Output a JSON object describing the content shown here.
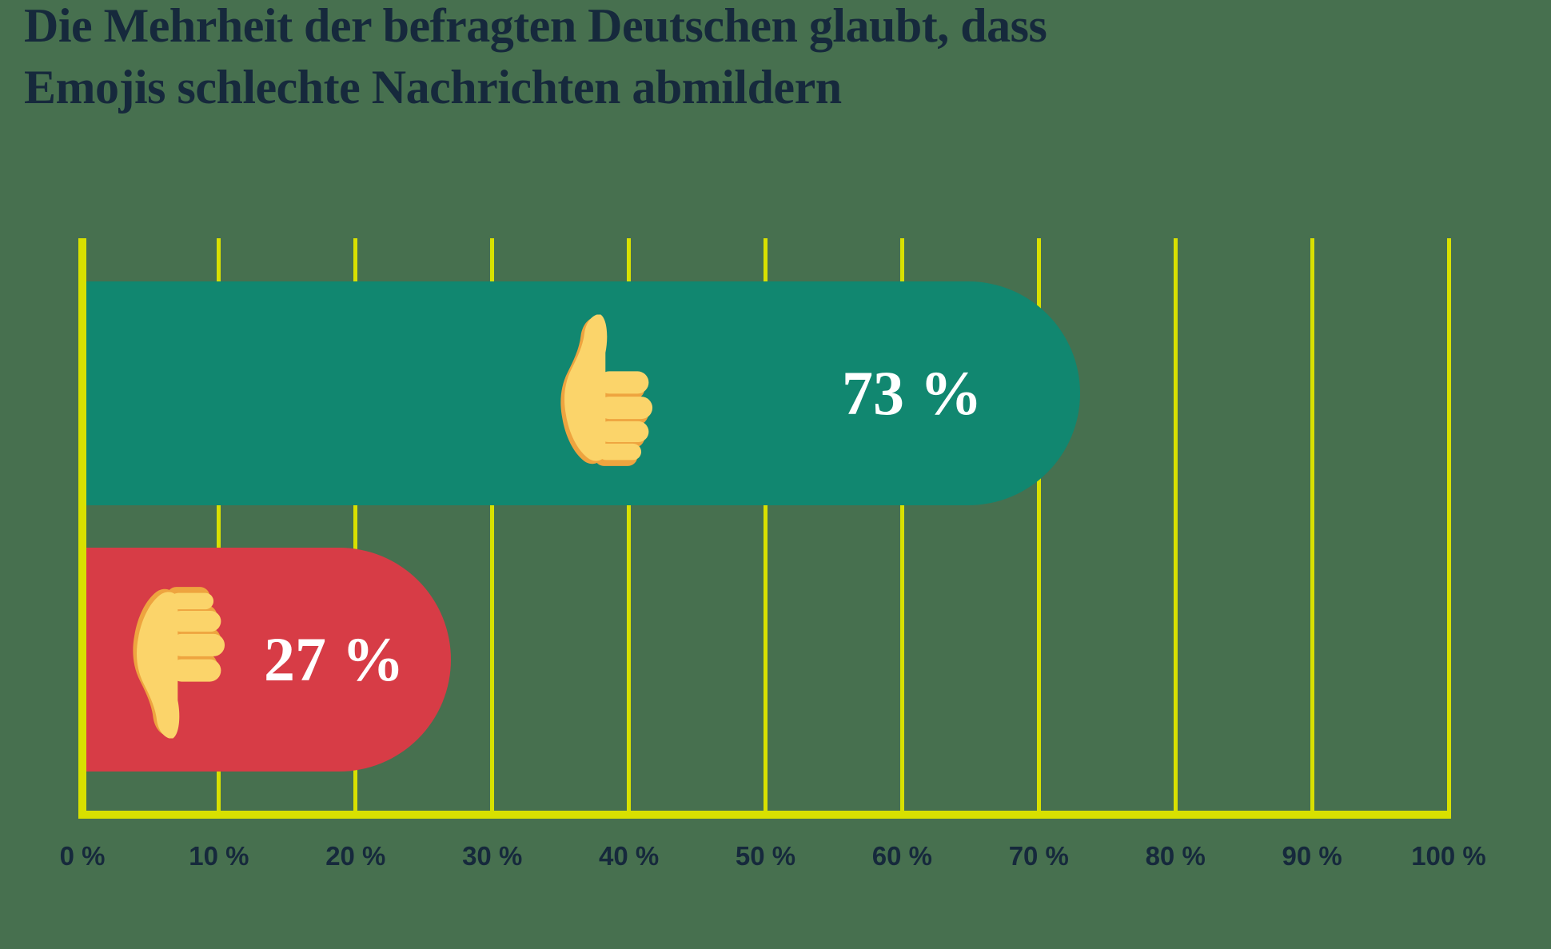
{
  "title": {
    "line1": "Die Mehrheit der befragten Deutschen glaubt, dass",
    "line2": "Emojis schlechte Nachrichten abmildern"
  },
  "chart_data": {
    "type": "bar",
    "orientation": "horizontal",
    "title": "Die Mehrheit der befragten Deutschen glaubt, dass Emojis schlechte Nachrichten abmildern",
    "xlabel": "",
    "ylabel": "",
    "xlim": [
      0,
      100
    ],
    "grid": "vertical",
    "bars": [
      {
        "icon": "thumbs-up-emoji",
        "value": 73,
        "label": "73 %",
        "color": "#118770"
      },
      {
        "icon": "thumbs-down-emoji",
        "value": 27,
        "label": "27 %",
        "color": "#D73C46"
      }
    ],
    "xticks": [
      {
        "value": 0,
        "label": "0 %"
      },
      {
        "value": 10,
        "label": "10 %"
      },
      {
        "value": 20,
        "label": "20 %"
      },
      {
        "value": 30,
        "label": "30 %"
      },
      {
        "value": 40,
        "label": "40 %"
      },
      {
        "value": 50,
        "label": "50 %"
      },
      {
        "value": 60,
        "label": "60 %"
      },
      {
        "value": 70,
        "label": "70 %"
      },
      {
        "value": 80,
        "label": "80 %"
      },
      {
        "value": 90,
        "label": "90 %"
      },
      {
        "value": 100,
        "label": "100 %"
      }
    ],
    "colors": {
      "background": "#47704F",
      "grid_and_axis": "#D8E000",
      "bar_positive": "#118770",
      "bar_negative": "#D73C46",
      "title_text": "#16293C",
      "tick_text": "#16293C",
      "value_text": "#FFFFFF",
      "emoji_skin": "#FBD46A",
      "emoji_shade": "#EEA43F"
    }
  }
}
